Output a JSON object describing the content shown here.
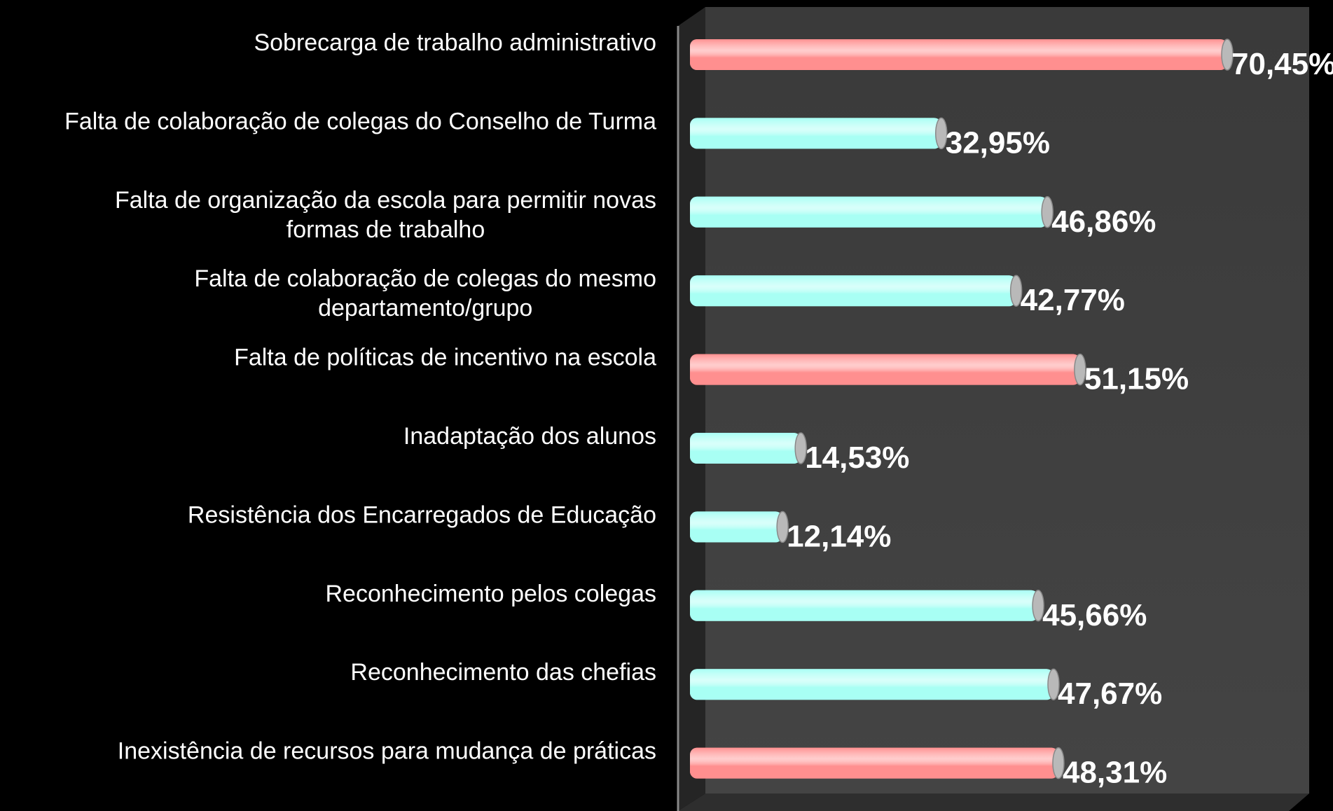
{
  "chart_data": {
    "type": "bar",
    "categories": [
      "Sobrecarga de trabalho administrativo",
      "Falta de colaboração de colegas do Conselho de Turma",
      "Falta de organização da escola para permitir novas\nformas de trabalho",
      "Falta de colaboração de colegas do mesmo\ndepartamento/grupo",
      "Falta de políticas de incentivo na escola",
      "Inadaptação dos alunos",
      "Resistência dos Encarregados de Educação",
      "Reconhecimento pelos colegas",
      "Reconhecimento das chefias",
      "Inexistência de recursos para mudança de práticas"
    ],
    "values": [
      70.45,
      32.95,
      46.86,
      42.77,
      51.15,
      14.53,
      12.14,
      45.66,
      47.67,
      48.31
    ],
    "value_labels": [
      "70,45%",
      "32,95%",
      "46,86%",
      "42,77%",
      "51,15%",
      "14,53%",
      "12,14%",
      "45,66%",
      "47,67%",
      "48,31%"
    ],
    "colors": [
      "#ff8f8f",
      "#a8fff4",
      "#a8fff4",
      "#a8fff4",
      "#ff8f8f",
      "#a8fff4",
      "#a8fff4",
      "#a8fff4",
      "#a8fff4",
      "#ff8f8f"
    ],
    "xlim": [
      0,
      80
    ]
  }
}
